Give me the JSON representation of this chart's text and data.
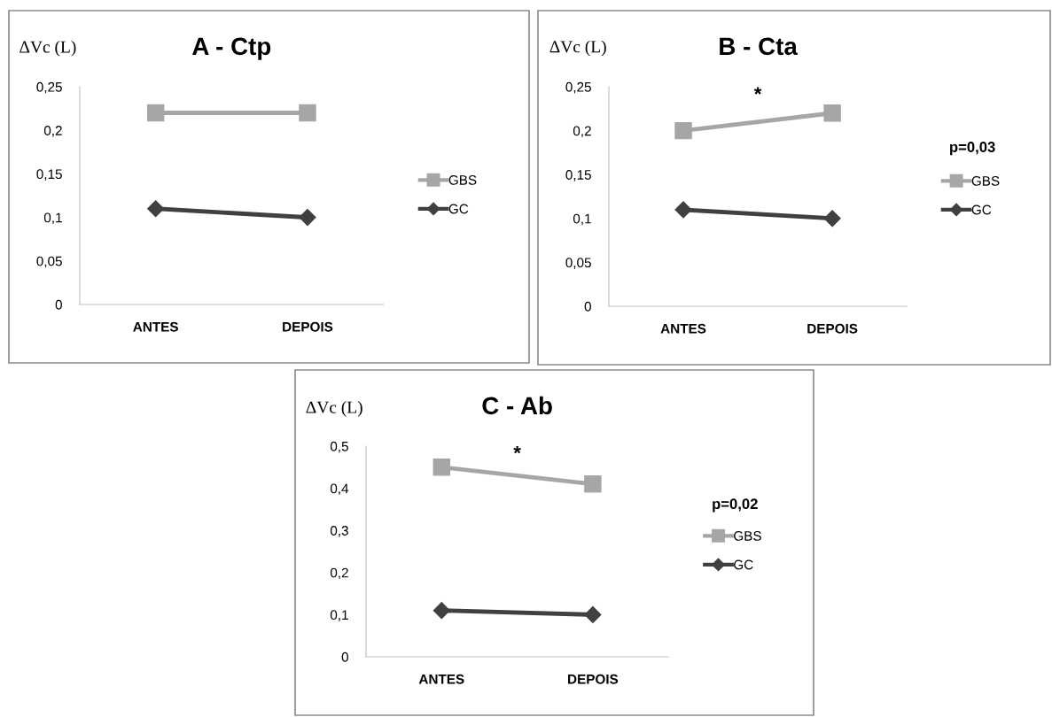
{
  "chart_data": [
    {
      "type": "line",
      "title": "A - Ctp",
      "ylabel": "ΔVc (L)",
      "categories": [
        "ANTES",
        "DEPOIS"
      ],
      "series": [
        {
          "name": "GBS",
          "color": "#a6a6a6",
          "marker": "square",
          "values": [
            0.22,
            0.22
          ]
        },
        {
          "name": "GC",
          "color": "#404040",
          "marker": "diamond",
          "values": [
            0.11,
            0.1
          ]
        }
      ],
      "ylim": [
        0,
        0.25
      ],
      "yticks": [
        0,
        {
          "value": 0.05,
          "label": "0,05"
        },
        {
          "value": 0.1,
          "label": "0,1"
        },
        {
          "value": 0.15,
          "label": "0,15"
        },
        {
          "value": 0.2,
          "label": "0,2"
        },
        {
          "value": 0.25,
          "label": "0,25"
        }
      ],
      "grid": false,
      "legend": "right"
    },
    {
      "type": "line",
      "title": "B - Cta",
      "ylabel": "ΔVc (L)",
      "categories": [
        "ANTES",
        "DEPOIS"
      ],
      "series": [
        {
          "name": "GBS",
          "color": "#a6a6a6",
          "marker": "square",
          "values": [
            0.2,
            0.22
          ]
        },
        {
          "name": "GC",
          "color": "#404040",
          "marker": "diamond",
          "values": [
            0.11,
            0.1
          ]
        }
      ],
      "ylim": [
        0,
        0.25
      ],
      "yticks": [
        0,
        {
          "value": 0.05,
          "label": "0,05"
        },
        {
          "value": 0.1,
          "label": "0,1"
        },
        {
          "value": 0.15,
          "label": "0,15"
        },
        {
          "value": 0.2,
          "label": "0,2"
        },
        {
          "value": 0.25,
          "label": "0,25"
        }
      ],
      "grid": false,
      "legend": "right",
      "annotations": [
        "*",
        "p=0,03"
      ]
    },
    {
      "type": "line",
      "title": "C - Ab",
      "ylabel": "ΔVc (L)",
      "categories": [
        "ANTES",
        "DEPOIS"
      ],
      "series": [
        {
          "name": "GBS",
          "color": "#a6a6a6",
          "marker": "square",
          "values": [
            0.45,
            0.41
          ]
        },
        {
          "name": "GC",
          "color": "#404040",
          "marker": "diamond",
          "values": [
            0.11,
            0.1
          ]
        }
      ],
      "ylim": [
        0,
        0.5
      ],
      "yticks": [
        0,
        {
          "value": 0.1,
          "label": "0,1"
        },
        {
          "value": 0.2,
          "label": "0,2"
        },
        {
          "value": 0.3,
          "label": "0,3"
        },
        {
          "value": 0.4,
          "label": "0,4"
        },
        {
          "value": 0.5,
          "label": "0,5"
        }
      ],
      "grid": false,
      "legend": "right",
      "annotations": [
        "*",
        "p=0,02"
      ]
    }
  ]
}
